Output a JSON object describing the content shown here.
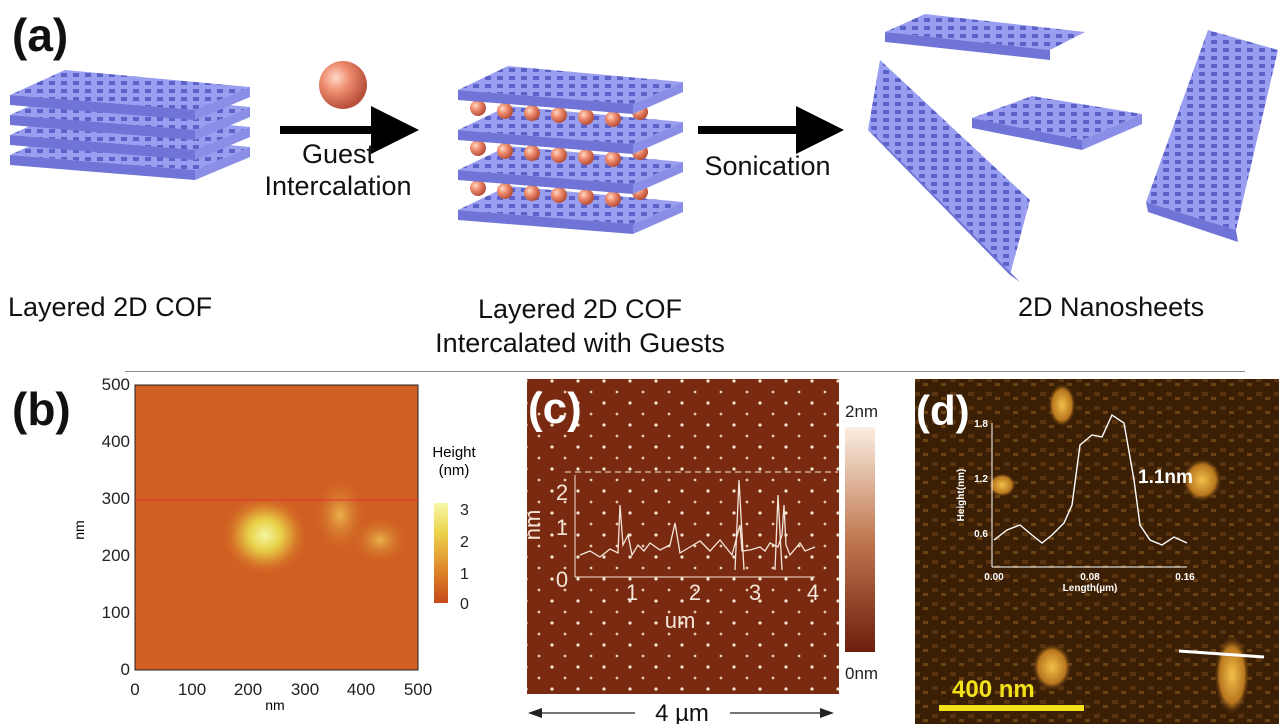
{
  "panel_a": {
    "label": "(a)",
    "step1": [
      "Guest",
      "Intercalation"
    ],
    "step2": "Sonication",
    "captions": {
      "left": "Layered 2D COF",
      "middle": [
        "Layered 2D COF",
        "Intercalated with Guests"
      ],
      "right": "2D Nanosheets"
    }
  },
  "panel_b": {
    "label": "(b)",
    "x_axis_label": "nm",
    "y_axis_label": "nm",
    "x_ticks": [
      "0",
      "100",
      "200",
      "300",
      "400",
      "500"
    ],
    "y_ticks": [
      "0",
      "100",
      "200",
      "300",
      "400",
      "500"
    ],
    "colorbar_title": [
      "Height",
      "(nm)"
    ],
    "colorbar_ticks": [
      "3",
      "2",
      "1",
      "0"
    ]
  },
  "panel_c": {
    "label": "(c)",
    "inset_y_label": "nm",
    "inset_x_label": "um",
    "inset_y_ticks": [
      "2",
      "1",
      "0"
    ],
    "inset_x_ticks": [
      "1",
      "2",
      "3",
      "4"
    ],
    "colorbar_top": "2nm",
    "colorbar_bottom": "0nm",
    "scale": "4 µm"
  },
  "panel_d": {
    "label": "(d)",
    "inset_y_label": "Height(nm)",
    "inset_x_label": "Length(µm)",
    "inset_y_ticks": [
      "1.8",
      "1.2",
      "0.6"
    ],
    "inset_x_ticks": [
      "0.00",
      "0.08",
      "0.16"
    ],
    "annotation": "1.1nm",
    "scale_bar": "400 nm",
    "colors": {
      "scale_bar": "#f2e21a",
      "background": "#3a1f05"
    }
  }
}
